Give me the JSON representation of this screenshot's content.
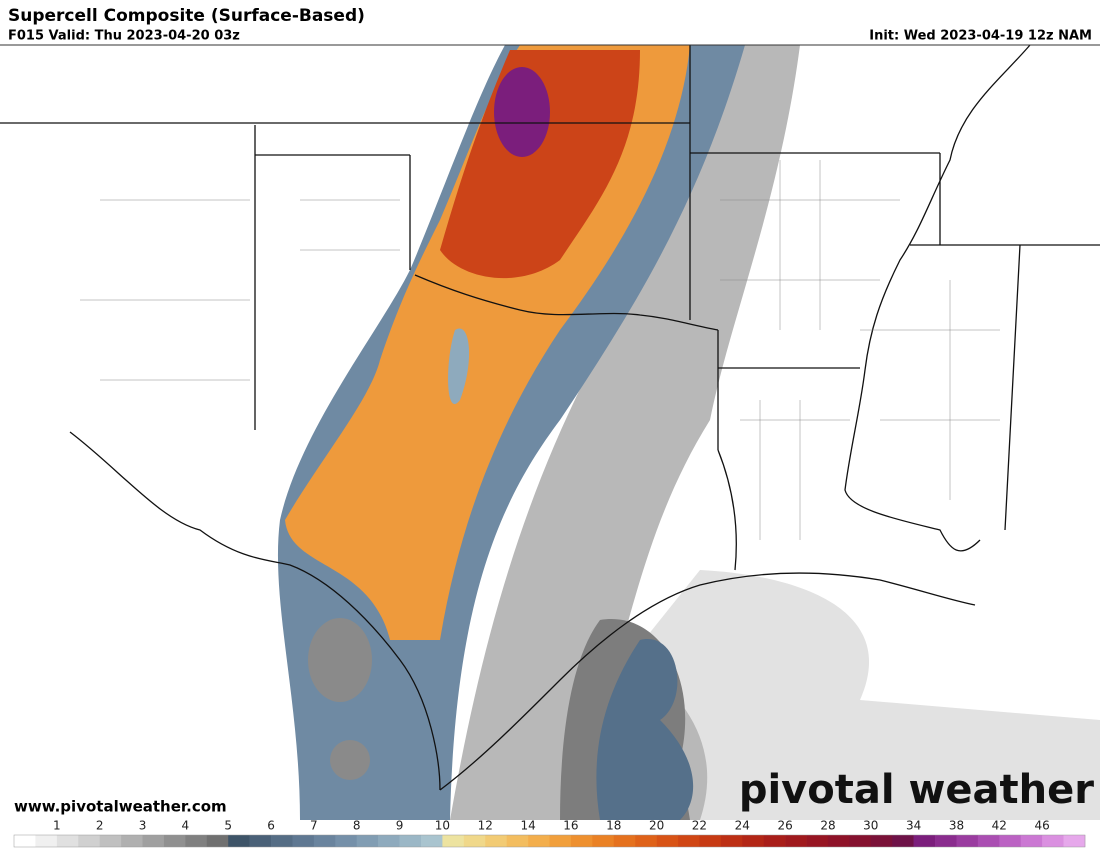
{
  "header": {
    "title": "Supercell Composite (Surface-Based)",
    "valid": "F015 Valid: Thu 2023-04-20 03z",
    "init": "Init: Wed 2023-04-19 12z NAM"
  },
  "footer": {
    "website": "www.pivotalweather.com",
    "logo": "pivotal weather"
  },
  "colorbar": {
    "labels": [
      1,
      2,
      3,
      4,
      5,
      6,
      7,
      8,
      9,
      10,
      12,
      14,
      16,
      18,
      20,
      22,
      24,
      26,
      28,
      30,
      34,
      38,
      42,
      46
    ],
    "colors": [
      "#ffffff",
      "#f0f0f0",
      "#e0e0e0",
      "#d0d0d0",
      "#c0c0c0",
      "#b0b0b0",
      "#a0a0a0",
      "#909090",
      "#808080",
      "#707070",
      "#3e5468",
      "#4a6178",
      "#556d85",
      "#5f7892",
      "#6a849e",
      "#7590a9",
      "#819db3",
      "#8eaabd",
      "#9bb7c6",
      "#a9c4cf",
      "#ede3a0",
      "#f0d88a",
      "#f2cb74",
      "#f3bd5f",
      "#f3ae4c",
      "#f19f3c",
      "#ee902f",
      "#ea8125",
      "#e5711e",
      "#df6219",
      "#d85316",
      "#d04614",
      "#c73a13",
      "#bd2f14",
      "#b32616",
      "#a91e19",
      "#a0191d",
      "#971522",
      "#8e1228",
      "#85112f",
      "#7a1138",
      "#6e1248",
      "#7b1e7c",
      "#8a2c8e",
      "#9a3ca0",
      "#aa4eb2",
      "#bb62c3",
      "#cb78d3",
      "#da90e0",
      "#e6a8eb"
    ]
  }
}
